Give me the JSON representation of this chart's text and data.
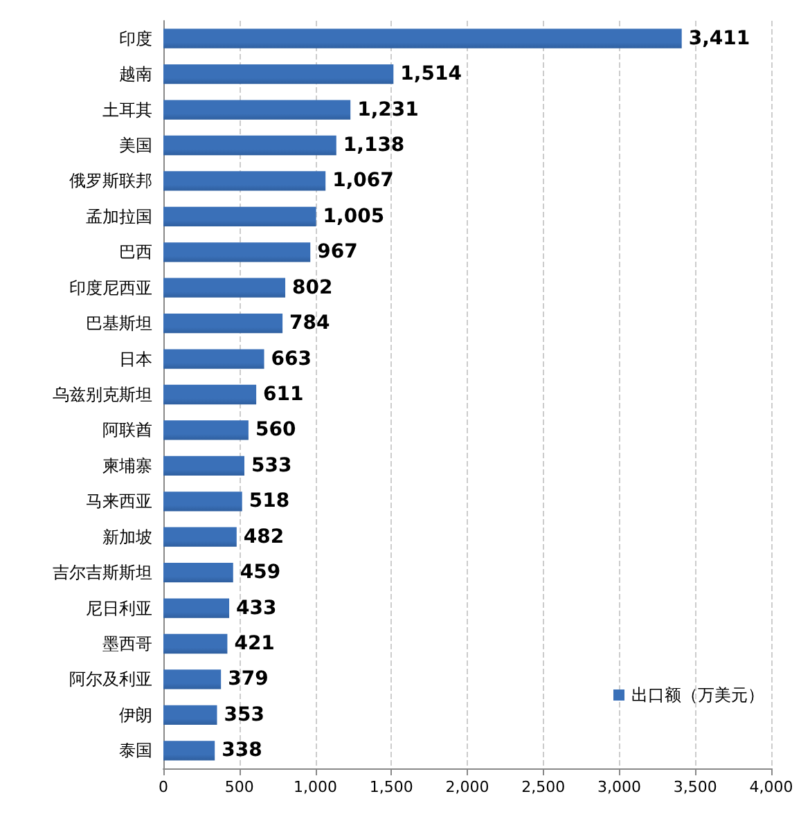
{
  "chart_data": {
    "type": "bar",
    "orientation": "horizontal",
    "categories": [
      "印度",
      "越南",
      "土耳其",
      "美国",
      "俄罗斯联邦",
      "孟加拉国",
      "巴西",
      "印度尼西亚",
      "巴基斯坦",
      "日本",
      "乌兹别克斯坦",
      "阿联酋",
      "柬埔寨",
      "马来西亚",
      "新加坡",
      "吉尔吉斯斯坦",
      "尼日利亚",
      "墨西哥",
      "阿尔及利亚",
      "伊朗",
      "泰国"
    ],
    "series": [
      {
        "name": "出口额（万美元）",
        "color": "#3a70b8",
        "values": [
          3411,
          1514,
          1231,
          1138,
          1067,
          1005,
          967,
          802,
          784,
          663,
          611,
          560,
          533,
          518,
          482,
          459,
          433,
          421,
          379,
          353,
          338
        ],
        "value_labels": [
          "3,411",
          "1,514",
          "1,231",
          "1,138",
          "1,067",
          "1,005",
          "967",
          "802",
          "784",
          "663",
          "611",
          "560",
          "533",
          "518",
          "482",
          "459",
          "433",
          "421",
          "379",
          "353",
          "338"
        ]
      }
    ],
    "xlim": [
      0,
      4000
    ],
    "xticks": [
      0,
      500,
      {
        "value": 1000,
        "label": "1,000"
      },
      {
        "value": 1500,
        "label": "1,500"
      },
      {
        "value": 2000,
        "label": "2,000"
      },
      {
        "value": 2500,
        "label": "2,500"
      },
      {
        "value": 3000,
        "label": "3,000"
      },
      {
        "value": 3500,
        "label": "3,500"
      },
      {
        "value": 4000,
        "label": "4,000"
      }
    ],
    "grid": "x",
    "legend": "bottom right"
  }
}
